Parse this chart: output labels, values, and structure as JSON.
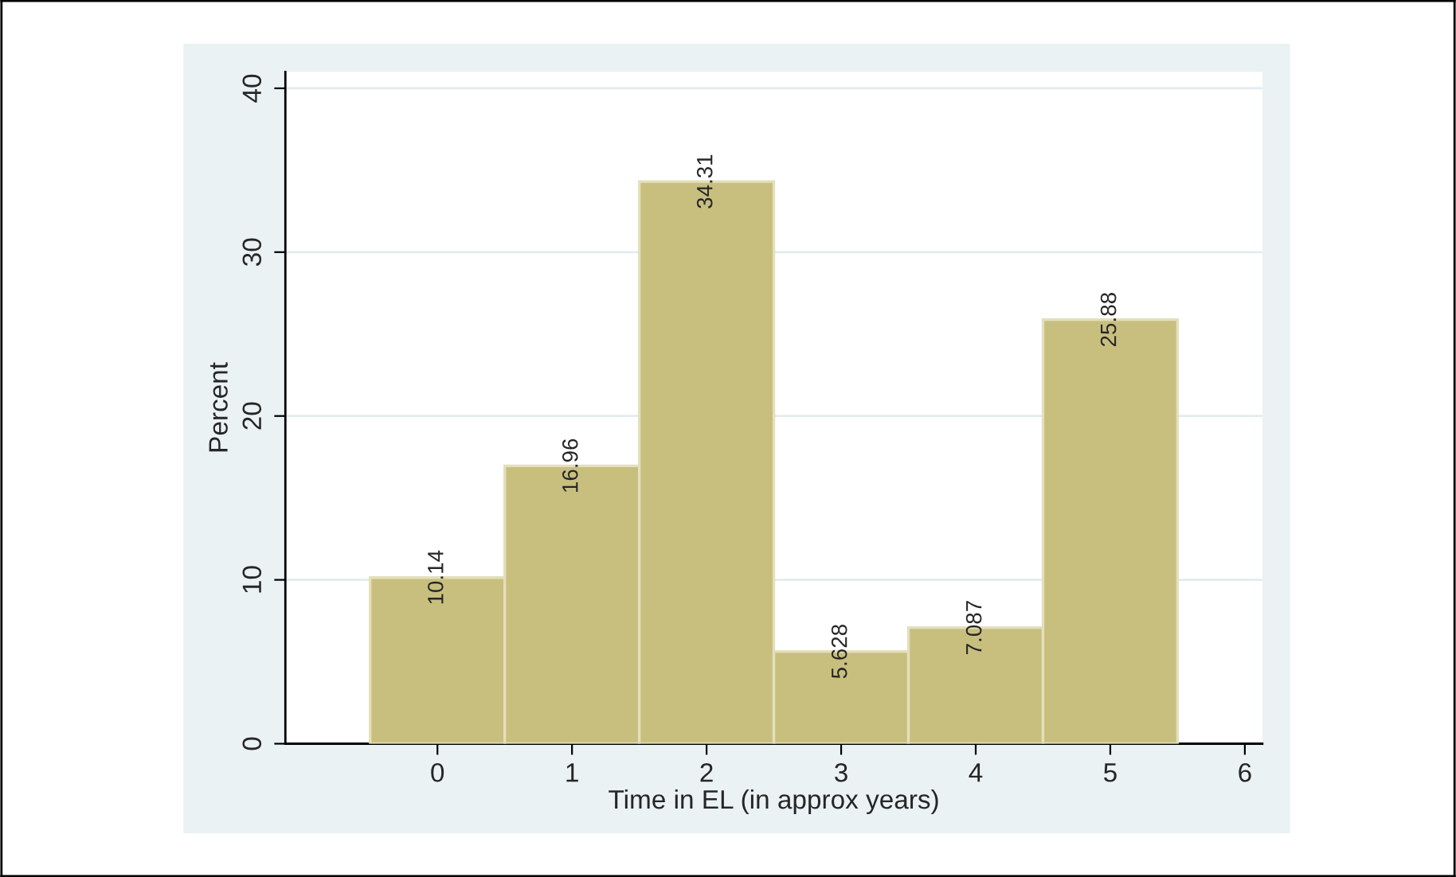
{
  "chart_data": {
    "type": "histogram",
    "xlabel": "Time in EL (in approx years)",
    "ylabel": "Percent",
    "bins": [
      -0.5,
      0.5,
      1.5,
      2.5,
      3.5,
      4.5,
      5.5
    ],
    "values": [
      10.14,
      16.96,
      34.31,
      5.628,
      7.087,
      25.88
    ],
    "color": "#c8bf7f",
    "data_labels": true,
    "xlim": [
      -1.13,
      6.13
    ],
    "xticks": [
      0,
      1,
      2,
      3,
      4,
      5,
      6
    ],
    "ylim": [
      0,
      41
    ],
    "yticks": [
      0,
      10,
      20,
      30,
      40
    ],
    "grid": "y"
  }
}
